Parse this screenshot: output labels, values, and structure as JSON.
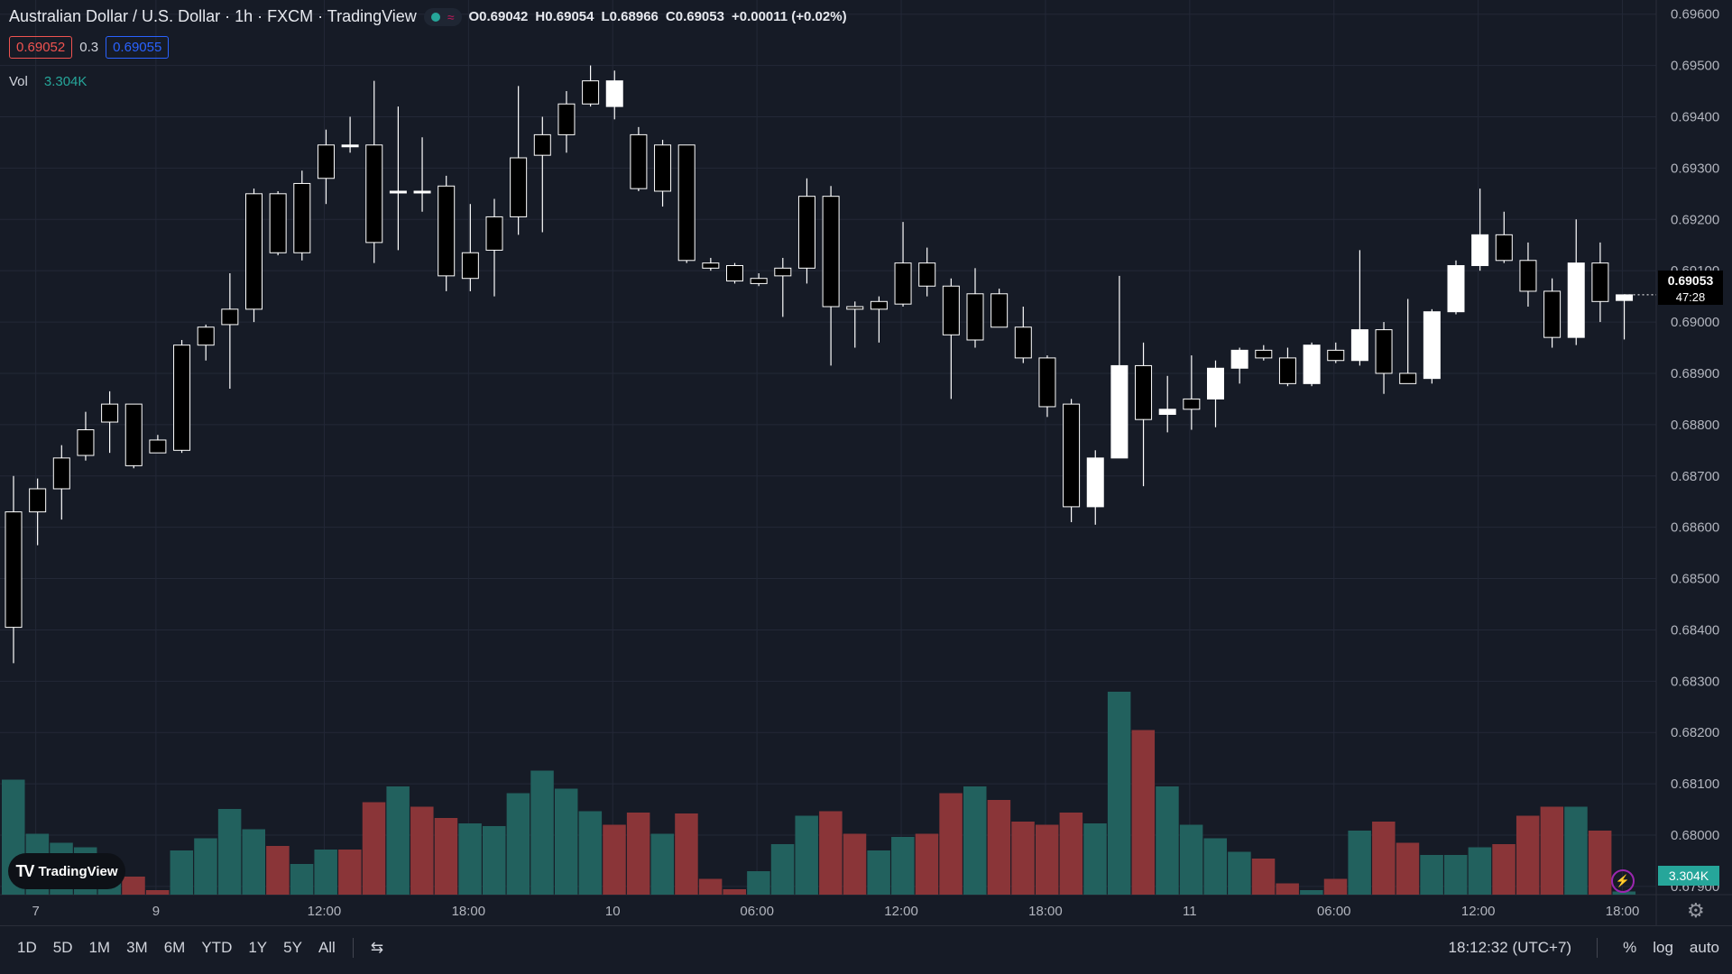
{
  "header": {
    "title": "Australian Dollar / U.S. Dollar · 1h · FXCM · TradingView",
    "ohlc": {
      "o_label": "O",
      "o": "0.69042",
      "h_label": "H",
      "h": "0.69054",
      "l_label": "L",
      "l": "0.68966",
      "c_label": "C",
      "c": "0.69053",
      "change": "+0.00011 (+0.02%)"
    },
    "sell_price": "0.69052",
    "spread": "0.3",
    "buy_price": "0.69055",
    "volume_label": "Vol",
    "volume_value": "3.304K"
  },
  "last_price": {
    "price": "0.69053",
    "countdown": "47:28"
  },
  "volume_badge": "3.304K",
  "logo_text": "TradingView",
  "bottom_bar": {
    "ranges": [
      "1D",
      "5D",
      "1M",
      "3M",
      "6M",
      "YTD",
      "1Y",
      "5Y",
      "All"
    ],
    "time": "18:12:32 (UTC+7)",
    "percent": "%",
    "log": "log",
    "auto": "auto"
  },
  "colors": {
    "background": "#161b26",
    "up_volume": "#22615e",
    "down_volume": "#8a3538",
    "candle_up": "#ffffff",
    "candle_down": "#000000"
  },
  "chart_data": {
    "type": "candlestick",
    "y_ticks": [
      "0.69600",
      "0.69500",
      "0.69400",
      "0.69300",
      "0.69200",
      "0.69100",
      "0.69000",
      "0.68900",
      "0.68800",
      "0.68700",
      "0.68600",
      "0.68500",
      "0.68400",
      "0.68300",
      "0.68200",
      "0.68100",
      "0.68000",
      "0.67900"
    ],
    "ylim": [
      0.6787,
      0.6961
    ],
    "x_ticks": [
      {
        "label": "7",
        "index": 1
      },
      {
        "label": "9",
        "index": 6
      },
      {
        "label": "12:00",
        "index": 13
      },
      {
        "label": "18:00",
        "index": 19
      },
      {
        "label": "10",
        "index": 25
      },
      {
        "label": "06:00",
        "index": 31
      },
      {
        "label": "12:00",
        "index": 37
      },
      {
        "label": "18:00",
        "index": 43
      },
      {
        "label": "11",
        "index": 49
      },
      {
        "label": "06:00",
        "index": 55
      },
      {
        "label": "12:00",
        "index": 61
      },
      {
        "label": "18:00",
        "index": 67
      }
    ],
    "candles": [
      [
        0.6863,
        0.687,
        0.68335,
        0.68405
      ],
      [
        0.68675,
        0.68695,
        0.68565,
        0.6863
      ],
      [
        0.68735,
        0.6876,
        0.68615,
        0.68675
      ],
      [
        0.6879,
        0.68825,
        0.6873,
        0.6874
      ],
      [
        0.6884,
        0.68865,
        0.68745,
        0.68805
      ],
      [
        0.6884,
        0.6884,
        0.68715,
        0.6872
      ],
      [
        0.6877,
        0.6878,
        0.68745,
        0.68745
      ],
      [
        0.68955,
        0.68965,
        0.68745,
        0.6875
      ],
      [
        0.6899,
        0.68995,
        0.68925,
        0.68955
      ],
      [
        0.69025,
        0.69095,
        0.6887,
        0.68995
      ],
      [
        0.6925,
        0.6926,
        0.69,
        0.69025
      ],
      [
        0.6925,
        0.69255,
        0.6913,
        0.69135
      ],
      [
        0.6927,
        0.69295,
        0.6912,
        0.69135
      ],
      [
        0.69345,
        0.69375,
        0.6923,
        0.6928
      ],
      [
        0.69345,
        0.694,
        0.6933,
        0.69345
      ],
      [
        0.69345,
        0.6947,
        0.69115,
        0.69155
      ],
      [
        0.69255,
        0.6942,
        0.6914,
        0.69255
      ],
      [
        0.69255,
        0.6936,
        0.69215,
        0.69255
      ],
      [
        0.69265,
        0.69285,
        0.6906,
        0.6909
      ],
      [
        0.69135,
        0.6923,
        0.6906,
        0.69085
      ],
      [
        0.69205,
        0.6924,
        0.6905,
        0.6914
      ],
      [
        0.6932,
        0.6946,
        0.6917,
        0.69205
      ],
      [
        0.69365,
        0.694,
        0.69175,
        0.69325
      ],
      [
        0.69425,
        0.6945,
        0.6933,
        0.69365
      ],
      [
        0.6947,
        0.695,
        0.6942,
        0.69425
      ],
      [
        0.6942,
        0.6949,
        0.69395,
        0.6947
      ],
      [
        0.69365,
        0.6938,
        0.69255,
        0.6926
      ],
      [
        0.69345,
        0.69355,
        0.69225,
        0.69255
      ],
      [
        0.69345,
        0.69345,
        0.69115,
        0.6912
      ],
      [
        0.69115,
        0.69125,
        0.691,
        0.69105
      ],
      [
        0.6911,
        0.69115,
        0.69075,
        0.6908
      ],
      [
        0.69085,
        0.69095,
        0.6907,
        0.69075
      ],
      [
        0.69105,
        0.69125,
        0.6901,
        0.6909
      ],
      [
        0.69245,
        0.6928,
        0.69075,
        0.69105
      ],
      [
        0.69245,
        0.69265,
        0.68915,
        0.6903
      ],
      [
        0.6903,
        0.6904,
        0.6895,
        0.69025
      ],
      [
        0.6904,
        0.6905,
        0.6896,
        0.69025
      ],
      [
        0.69115,
        0.69195,
        0.6903,
        0.69035
      ],
      [
        0.69115,
        0.69145,
        0.6905,
        0.6907
      ],
      [
        0.6907,
        0.69085,
        0.6885,
        0.68975
      ],
      [
        0.69055,
        0.69105,
        0.6895,
        0.68965
      ],
      [
        0.69055,
        0.69065,
        0.6899,
        0.6899
      ],
      [
        0.6899,
        0.6903,
        0.6892,
        0.6893
      ],
      [
        0.6893,
        0.68935,
        0.68815,
        0.68835
      ],
      [
        0.6884,
        0.6885,
        0.6861,
        0.6864
      ],
      [
        0.6864,
        0.6875,
        0.68605,
        0.68735
      ],
      [
        0.68735,
        0.6909,
        0.68735,
        0.68915
      ],
      [
        0.68915,
        0.6896,
        0.6868,
        0.6881
      ],
      [
        0.6882,
        0.68895,
        0.68785,
        0.6883
      ],
      [
        0.6885,
        0.68935,
        0.6879,
        0.6883
      ],
      [
        0.6885,
        0.68925,
        0.68795,
        0.6891
      ],
      [
        0.6891,
        0.6895,
        0.6888,
        0.68945
      ],
      [
        0.68945,
        0.68955,
        0.68925,
        0.6893
      ],
      [
        0.6893,
        0.6895,
        0.68875,
        0.6888
      ],
      [
        0.6888,
        0.6896,
        0.68875,
        0.68955
      ],
      [
        0.68945,
        0.6896,
        0.6892,
        0.68925
      ],
      [
        0.68925,
        0.6914,
        0.68915,
        0.68985
      ],
      [
        0.68985,
        0.69,
        0.6886,
        0.689
      ],
      [
        0.689,
        0.69045,
        0.6888,
        0.6888
      ],
      [
        0.6889,
        0.69025,
        0.6888,
        0.6902
      ],
      [
        0.6902,
        0.6912,
        0.69015,
        0.6911
      ],
      [
        0.6911,
        0.6926,
        0.691,
        0.6917
      ],
      [
        0.6917,
        0.69215,
        0.69115,
        0.6912
      ],
      [
        0.6912,
        0.69155,
        0.6903,
        0.6906
      ],
      [
        0.6906,
        0.69085,
        0.6895,
        0.6897
      ],
      [
        0.6897,
        0.692,
        0.68955,
        0.69115
      ],
      [
        0.69115,
        0.69155,
        0.69,
        0.6904
      ],
      [
        0.69042,
        0.69054,
        0.68966,
        0.69053
      ]
    ],
    "volume": [
      {
        "v": 2.55,
        "up": true
      },
      {
        "v": 1.35,
        "up": true
      },
      {
        "v": 1.15,
        "up": true
      },
      {
        "v": 1.05,
        "up": true
      },
      {
        "v": 0.5,
        "up": true
      },
      {
        "v": 0.4,
        "up": false
      },
      {
        "v": 0.1,
        "up": false
      },
      {
        "v": 0.98,
        "up": true
      },
      {
        "v": 1.25,
        "up": true
      },
      {
        "v": 1.9,
        "up": true
      },
      {
        "v": 1.45,
        "up": true
      },
      {
        "v": 1.08,
        "up": false
      },
      {
        "v": 0.68,
        "up": true
      },
      {
        "v": 1.0,
        "up": true
      },
      {
        "v": 1.0,
        "up": false
      },
      {
        "v": 2.05,
        "up": false
      },
      {
        "v": 2.4,
        "up": true
      },
      {
        "v": 1.95,
        "up": false
      },
      {
        "v": 1.7,
        "up": false
      },
      {
        "v": 1.58,
        "up": true
      },
      {
        "v": 1.52,
        "up": true
      },
      {
        "v": 2.25,
        "up": true
      },
      {
        "v": 2.75,
        "up": true
      },
      {
        "v": 2.35,
        "up": true
      },
      {
        "v": 1.85,
        "up": true
      },
      {
        "v": 1.55,
        "up": false
      },
      {
        "v": 1.82,
        "up": false
      },
      {
        "v": 1.35,
        "up": true
      },
      {
        "v": 1.8,
        "up": false
      },
      {
        "v": 0.35,
        "up": false
      },
      {
        "v": 0.12,
        "up": false
      },
      {
        "v": 0.52,
        "up": true
      },
      {
        "v": 1.12,
        "up": true
      },
      {
        "v": 1.75,
        "up": true
      },
      {
        "v": 1.85,
        "up": false
      },
      {
        "v": 1.35,
        "up": false
      },
      {
        "v": 0.98,
        "up": true
      },
      {
        "v": 1.28,
        "up": true
      },
      {
        "v": 1.35,
        "up": false
      },
      {
        "v": 2.25,
        "up": false
      },
      {
        "v": 2.4,
        "up": true
      },
      {
        "v": 2.1,
        "up": false
      },
      {
        "v": 1.62,
        "up": false
      },
      {
        "v": 1.55,
        "up": false
      },
      {
        "v": 1.82,
        "up": false
      },
      {
        "v": 1.58,
        "up": true
      },
      {
        "v": 4.5,
        "up": true
      },
      {
        "v": 3.65,
        "up": false
      },
      {
        "v": 2.4,
        "up": true
      },
      {
        "v": 1.55,
        "up": true
      },
      {
        "v": 1.25,
        "up": true
      },
      {
        "v": 0.95,
        "up": true
      },
      {
        "v": 0.8,
        "up": false
      },
      {
        "v": 0.25,
        "up": false
      },
      {
        "v": 0.1,
        "up": true
      },
      {
        "v": 0.35,
        "up": false
      },
      {
        "v": 1.42,
        "up": true
      },
      {
        "v": 1.62,
        "up": false
      },
      {
        "v": 1.15,
        "up": false
      },
      {
        "v": 0.88,
        "up": true
      },
      {
        "v": 0.88,
        "up": true
      },
      {
        "v": 1.05,
        "up": true
      },
      {
        "v": 1.12,
        "up": false
      },
      {
        "v": 1.75,
        "up": false
      },
      {
        "v": 1.95,
        "up": false
      },
      {
        "v": 1.95,
        "up": true
      },
      {
        "v": 1.42,
        "up": false
      },
      {
        "v": 0.07,
        "up": true
      }
    ]
  }
}
